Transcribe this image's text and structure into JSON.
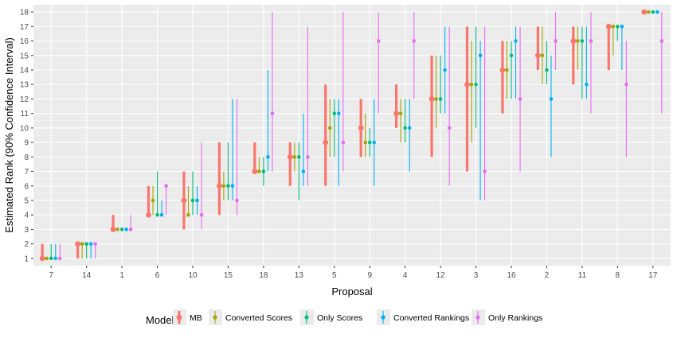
{
  "chart_data": {
    "type": "scatter",
    "xlabel": "Proposal",
    "ylabel": "Estimated Rank (90% Confidence Interval)",
    "ylim": [
      0.5,
      18.5
    ],
    "yticks": [
      1,
      2,
      3,
      4,
      5,
      6,
      7,
      8,
      9,
      10,
      11,
      12,
      13,
      14,
      15,
      16,
      17,
      18
    ],
    "categories": [
      "7",
      "14",
      "1",
      "6",
      "10",
      "15",
      "18",
      "13",
      "5",
      "9",
      "4",
      "12",
      "3",
      "16",
      "2",
      "11",
      "8",
      "17"
    ],
    "grid": true,
    "legend": {
      "title": "Model",
      "position": "bottom"
    },
    "series": [
      {
        "name": "MB",
        "color": "#F8766D",
        "points": [
          {
            "y": 1,
            "low": 1,
            "high": 2
          },
          {
            "y": 2,
            "low": 1,
            "high": 2
          },
          {
            "y": 3,
            "low": 3,
            "high": 4
          },
          {
            "y": 4,
            "low": 4,
            "high": 6
          },
          {
            "y": 5,
            "low": 3,
            "high": 7
          },
          {
            "y": 6,
            "low": 4,
            "high": 9
          },
          {
            "y": 7,
            "low": 7,
            "high": 9
          },
          {
            "y": 8,
            "low": 6,
            "high": 9
          },
          {
            "y": 9,
            "low": 6,
            "high": 13
          },
          {
            "y": 10,
            "low": 8,
            "high": 12
          },
          {
            "y": 11,
            "low": 10,
            "high": 13
          },
          {
            "y": 12,
            "low": 8,
            "high": 15
          },
          {
            "y": 13,
            "low": 7,
            "high": 17
          },
          {
            "y": 14,
            "low": 11,
            "high": 16
          },
          {
            "y": 15,
            "low": 14,
            "high": 17
          },
          {
            "y": 16,
            "low": 13,
            "high": 17
          },
          {
            "y": 17,
            "low": 14,
            "high": 17
          },
          {
            "y": 18,
            "low": 18,
            "high": 18
          }
        ]
      },
      {
        "name": "Converted Scores",
        "color": "#A3A500",
        "points": [
          {
            "y": 1,
            "low": 1,
            "high": 1
          },
          {
            "y": 2,
            "low": 1,
            "high": 2
          },
          {
            "y": 3,
            "low": 3,
            "high": 3
          },
          {
            "y": 5,
            "low": 4,
            "high": 6
          },
          {
            "y": 4,
            "low": 4,
            "high": 6
          },
          {
            "y": 6,
            "low": 5,
            "high": 7
          },
          {
            "y": 7,
            "low": 7,
            "high": 8
          },
          {
            "y": 8,
            "low": 7,
            "high": 9
          },
          {
            "y": 10,
            "low": 8,
            "high": 12
          },
          {
            "y": 9,
            "low": 8,
            "high": 11
          },
          {
            "y": 11,
            "low": 9,
            "high": 12
          },
          {
            "y": 12,
            "low": 10,
            "high": 15
          },
          {
            "y": 13,
            "low": 9,
            "high": 16
          },
          {
            "y": 14,
            "low": 12,
            "high": 16
          },
          {
            "y": 15,
            "low": 13,
            "high": 17
          },
          {
            "y": 16,
            "low": 14,
            "high": 17
          },
          {
            "y": 17,
            "low": 15,
            "high": 17
          },
          {
            "y": 18,
            "low": 18,
            "high": 18
          }
        ]
      },
      {
        "name": "Only Scores",
        "color": "#00BF7D",
        "points": [
          {
            "y": 1,
            "low": 1,
            "high": 2
          },
          {
            "y": 2,
            "low": 1,
            "high": 2
          },
          {
            "y": 3,
            "low": 3,
            "high": 3
          },
          {
            "y": 4,
            "low": 4,
            "high": 7
          },
          {
            "y": 5,
            "low": 4,
            "high": 7
          },
          {
            "y": 6,
            "low": 5,
            "high": 9
          },
          {
            "y": 7,
            "low": 6,
            "high": 8
          },
          {
            "y": 8,
            "low": 5,
            "high": 9
          },
          {
            "y": 11,
            "low": 8,
            "high": 12
          },
          {
            "y": 9,
            "low": 8,
            "high": 10
          },
          {
            "y": 10,
            "low": 9,
            "high": 12
          },
          {
            "y": 12,
            "low": 11,
            "high": 15
          },
          {
            "y": 13,
            "low": 10,
            "high": 17
          },
          {
            "y": 15,
            "low": 12,
            "high": 16
          },
          {
            "y": 14,
            "low": 13,
            "high": 16
          },
          {
            "y": 16,
            "low": 12,
            "high": 17
          },
          {
            "y": 17,
            "low": 16,
            "high": 17
          },
          {
            "y": 18,
            "low": 18,
            "high": 18
          }
        ]
      },
      {
        "name": "Converted Rankings",
        "color": "#00B0F6",
        "points": [
          {
            "y": 1,
            "low": 1,
            "high": 2
          },
          {
            "y": 2,
            "low": 1,
            "high": 2
          },
          {
            "y": 3,
            "low": 3,
            "high": 3
          },
          {
            "y": 4,
            "low": 4,
            "high": 5
          },
          {
            "y": 5,
            "low": 4,
            "high": 6
          },
          {
            "y": 6,
            "low": 5,
            "high": 12
          },
          {
            "y": 8,
            "low": 7,
            "high": 14
          },
          {
            "y": 7,
            "low": 6,
            "high": 11
          },
          {
            "y": 11,
            "low": 6,
            "high": 12
          },
          {
            "y": 9,
            "low": 6,
            "high": 12
          },
          {
            "y": 10,
            "low": 7,
            "high": 12
          },
          {
            "y": 14,
            "low": 11,
            "high": 17
          },
          {
            "y": 15,
            "low": 5,
            "high": 16
          },
          {
            "y": 16,
            "low": 12,
            "high": 17
          },
          {
            "y": 12,
            "low": 8,
            "high": 15
          },
          {
            "y": 13,
            "low": 12,
            "high": 17
          },
          {
            "y": 17,
            "low": 14,
            "high": 17
          },
          {
            "y": 18,
            "low": 18,
            "high": 18
          }
        ]
      },
      {
        "name": "Only Rankings",
        "color": "#E76BF3",
        "points": [
          {
            "y": 1,
            "low": 1,
            "high": 2
          },
          {
            "y": 2,
            "low": 1,
            "high": 2
          },
          {
            "y": 3,
            "low": 3,
            "high": 4
          },
          {
            "y": 6,
            "low": 4,
            "high": 6
          },
          {
            "y": 4,
            "low": 3,
            "high": 9
          },
          {
            "y": 5,
            "low": 4,
            "high": 12
          },
          {
            "y": 11,
            "low": 7,
            "high": 18
          },
          {
            "y": 8,
            "low": 6,
            "high": 17
          },
          {
            "y": 9,
            "low": 7,
            "high": 18
          },
          {
            "y": 16,
            "low": 11,
            "high": 18
          },
          {
            "y": 16,
            "low": 12,
            "high": 18
          },
          {
            "y": 10,
            "low": 6,
            "high": 17
          },
          {
            "y": 7,
            "low": 5,
            "high": 17
          },
          {
            "y": 12,
            "low": 7,
            "high": 17
          },
          {
            "y": 16,
            "low": 14,
            "high": 18
          },
          {
            "y": 16,
            "low": 11,
            "high": 18
          },
          {
            "y": 13,
            "low": 8,
            "high": 16
          },
          {
            "y": 16,
            "low": 11,
            "high": 18
          }
        ]
      }
    ]
  }
}
